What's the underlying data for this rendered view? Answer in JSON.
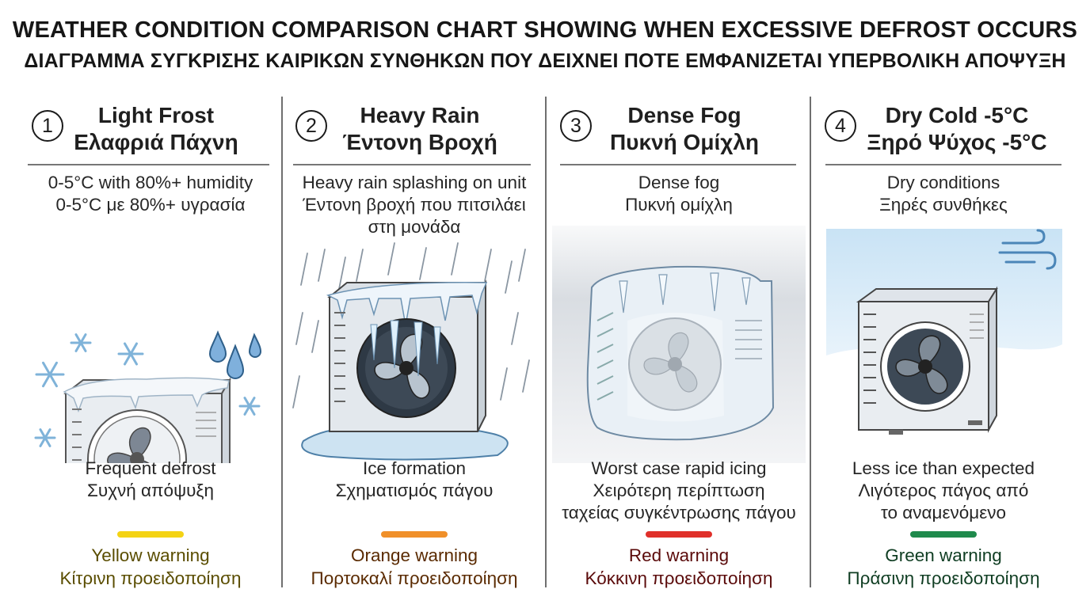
{
  "title_en": "WEATHER CONDITION COMPARISON CHART SHOWING WHEN EXCESSIVE DEFROST OCCURS",
  "title_gr": "ΔΙΑΓΡΑΜΜΑ ΣΥΓΚΡΙΣΗΣ ΚΑΙΡΙΚΩΝ ΣΥΝΘΗΚΩΝ ΠΟΥ ΔΕΙΧΝΕΙ ΠΟΤΕ ΕΜΦΑΝΙΖΕΤΑΙ ΥΠΕΡΒΟΛΙΚΗ ΑΠΟΨΥΞΗ",
  "panels": [
    {
      "number": "1",
      "title_en": "Light Frost",
      "title_gr": "Ελαφριά Πάχνη",
      "condition": [
        "0-5°C with 80%+ humidity",
        "0-5°C με 80%+ υγρασία"
      ],
      "icon": "light-frost-outdoor-unit-icon",
      "effect": [
        "Frequent defrost",
        "Συχνή απόψυξη"
      ],
      "warning_color": "#f4d314",
      "warning_text_color": "#5a4d00",
      "warning": [
        "Yellow warning",
        "Κίτρινη προειδοποίηση"
      ]
    },
    {
      "number": "2",
      "title_en": "Heavy Rain",
      "title_gr": "Έντονη Βροχή",
      "condition": [
        "Heavy rain splashing on unit",
        "Έντονη βροχή που πιτσιλάει",
        "στη μονάδα"
      ],
      "icon": "heavy-rain-iced-outdoor-unit-icon",
      "effect": [
        "Ice formation",
        "Σχηματισμός πάγου"
      ],
      "warning_color": "#f0902a",
      "warning_text_color": "#5a2a00",
      "warning": [
        "Orange warning",
        "Πορτοκαλί προειδοποίηση"
      ]
    },
    {
      "number": "3",
      "title_en": "Dense Fog",
      "title_gr": "Πυκνή Ομίχλη",
      "condition": [
        "Dense fog",
        "Πυκνή ομίχλη"
      ],
      "icon": "dense-fog-frozen-outdoor-unit-icon",
      "effect": [
        "Worst case rapid icing",
        "Χειρότερη περίπτωση",
        "ταχείας συγκέντρωσης πάγου"
      ],
      "warning_color": "#e0302a",
      "warning_text_color": "#5a0a0a",
      "warning": [
        "Red warning",
        "Κόκκινη προειδοποίηση"
      ]
    },
    {
      "number": "4",
      "title_en": "Dry Cold -5°C",
      "title_gr": "Ξηρό Ψύχος -5°C",
      "condition": [
        "Dry conditions",
        "Ξηρές συνθήκες"
      ],
      "icon": "dry-cold-clean-outdoor-unit-icon",
      "effect": [
        "Less ice than expected",
        "Λιγότερος πάγος από",
        "το αναμενόμενο"
      ],
      "warning_color": "#1f8a4c",
      "warning_text_color": "#0f3d22",
      "warning": [
        "Green warning",
        "Πράσινη προειδοποίηση"
      ]
    }
  ]
}
